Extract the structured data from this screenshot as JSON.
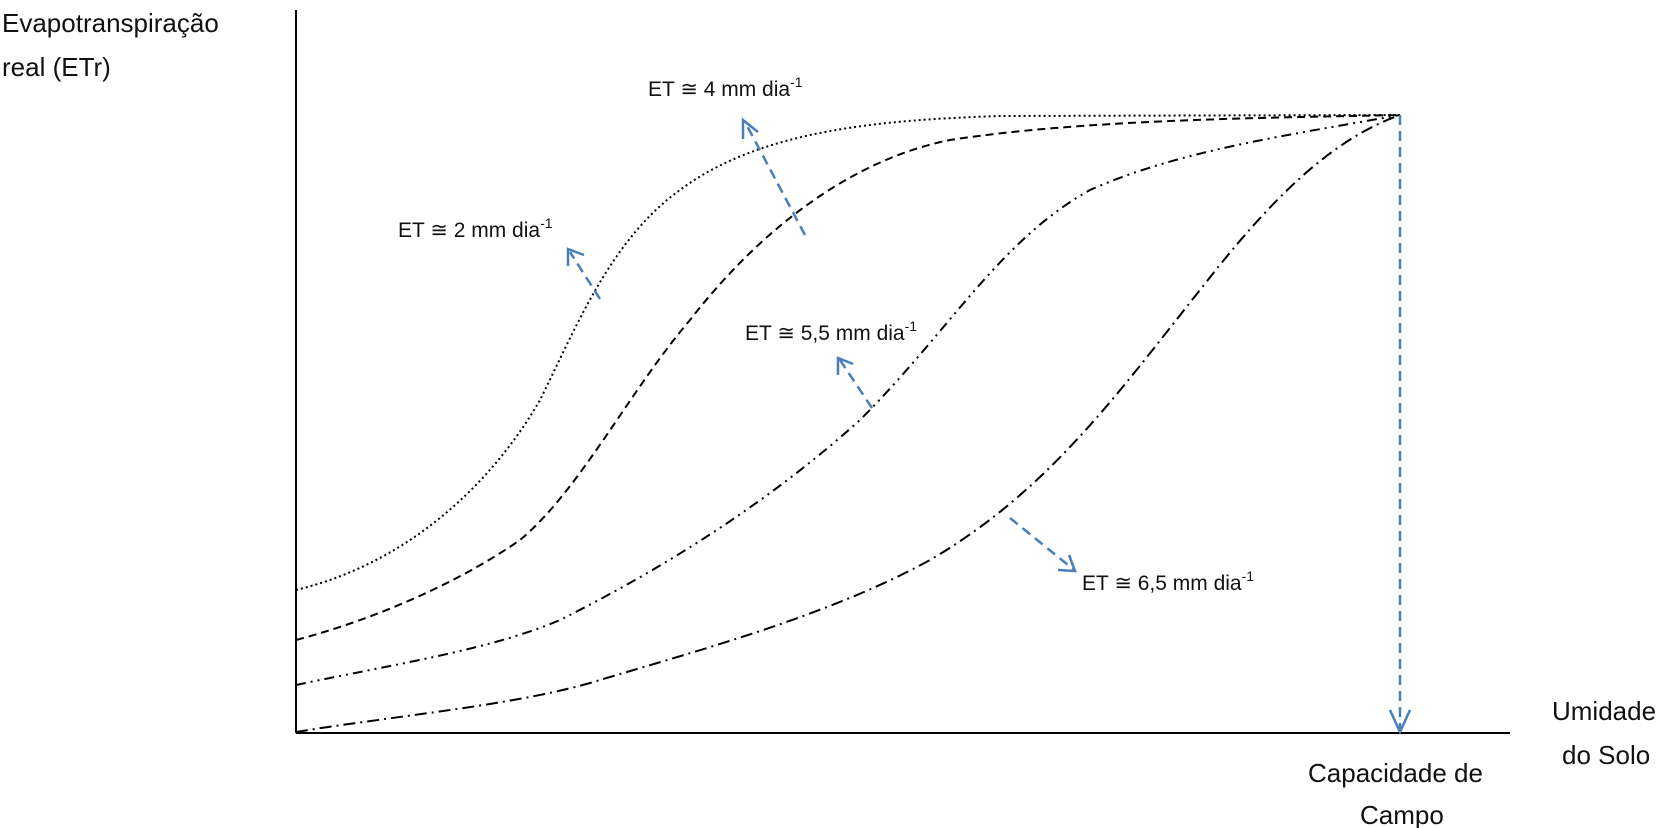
{
  "y_axis": {
    "line1": "Evapotranspiração",
    "line2": "real (ETr)"
  },
  "x_axis": {
    "line1": "Umidade",
    "line2": "do Solo"
  },
  "field_capacity": {
    "line1": "Capacidade de",
    "line2": "Campo"
  },
  "curves": [
    {
      "label": "ET ≅ 2 mm dia",
      "superscript": "-1",
      "style": "dotted"
    },
    {
      "label": "ET ≅ 4 mm dia",
      "superscript": "-1",
      "style": "dashed"
    },
    {
      "label": "ET ≅ 5,5 mm dia",
      "superscript": "-1",
      "style": "dash-dot-dot"
    },
    {
      "label": "ET ≅ 6,5 mm dia",
      "superscript": "-1",
      "style": "dash-dot"
    }
  ],
  "colors": {
    "curve": "#000000",
    "arrow": "#4a7ebb"
  }
}
